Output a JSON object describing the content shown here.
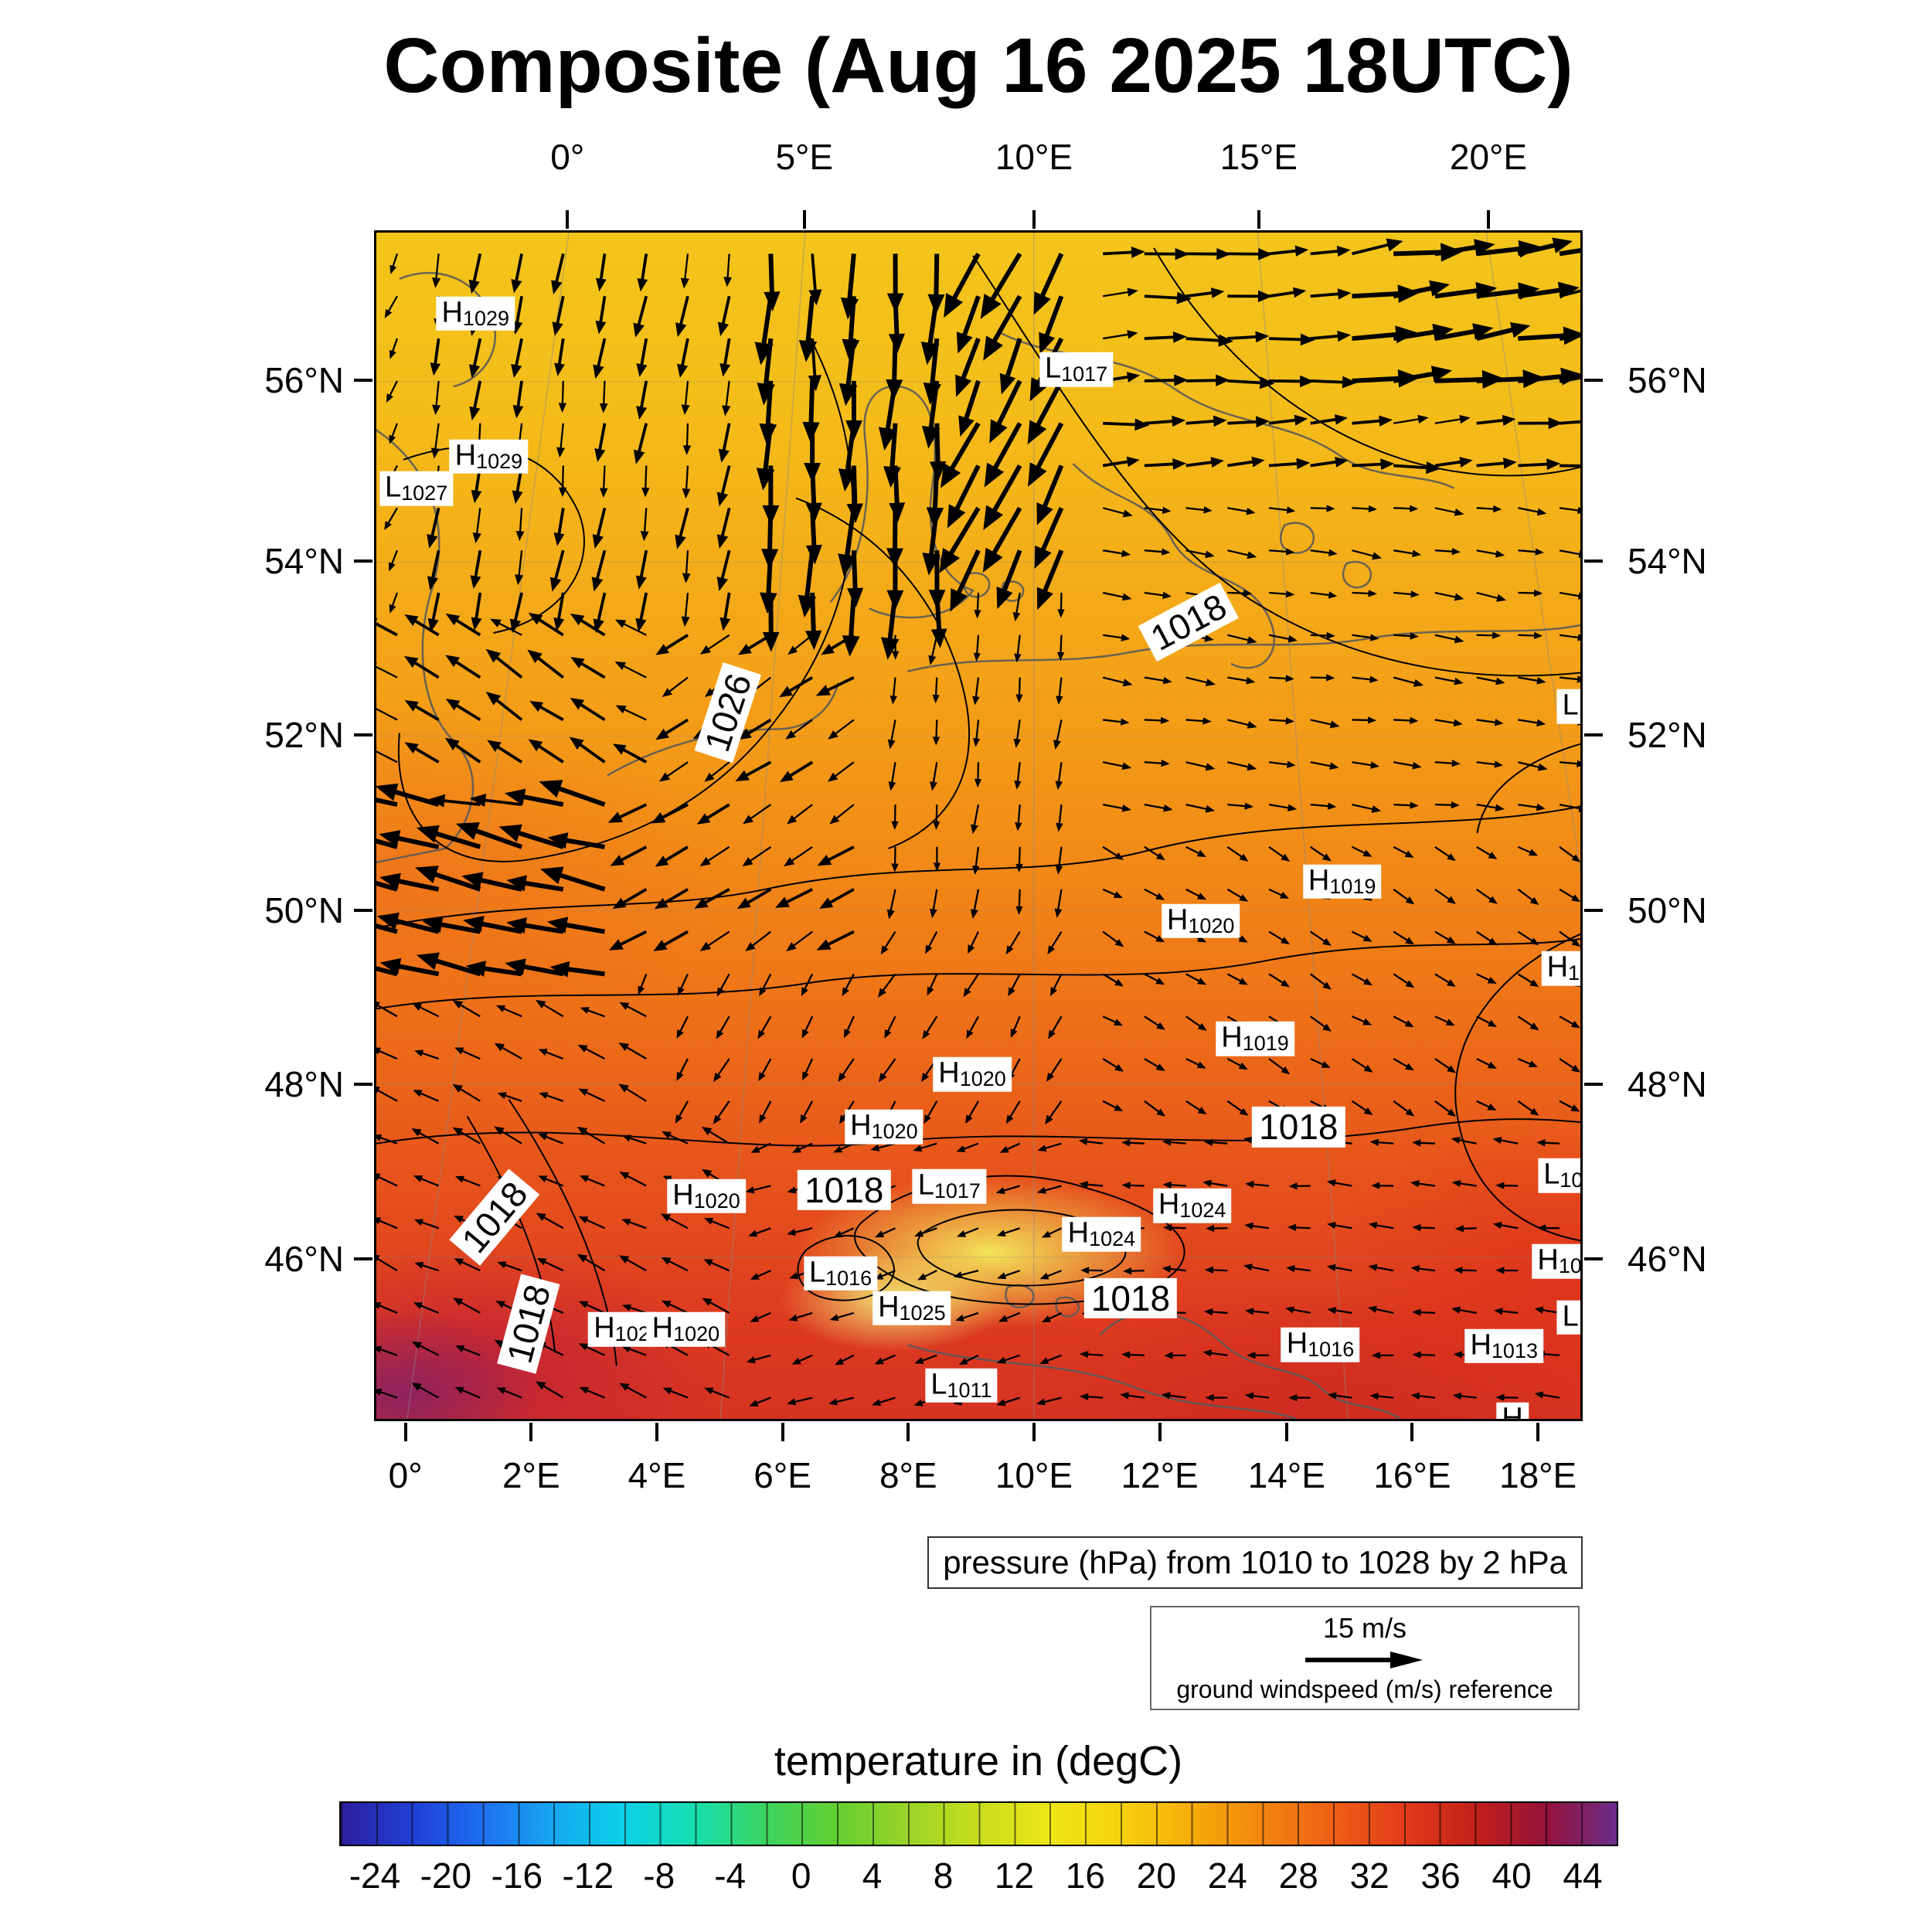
{
  "title": "Composite (Aug 16 2025 18UTC)",
  "pressure_caption": "pressure (hPa) from 1010 to 1028 by 2 hPa",
  "wind_legend": {
    "speed_label": "15 m/s",
    "caption": "ground windspeed (m/s) reference"
  },
  "colorbar": {
    "title": "temperature in (degC)",
    "vmin": -26,
    "vmax": 46,
    "ticks": [
      -24,
      -20,
      -16,
      -12,
      -8,
      -4,
      0,
      4,
      8,
      12,
      16,
      20,
      24,
      28,
      32,
      36,
      40,
      44
    ],
    "stops": [
      {
        "v": -26,
        "c": "#2d1e9e"
      },
      {
        "v": -22,
        "c": "#1f3fd4"
      },
      {
        "v": -18,
        "c": "#1e6ff0"
      },
      {
        "v": -14,
        "c": "#17a8f0"
      },
      {
        "v": -10,
        "c": "#0cd0e8"
      },
      {
        "v": -6,
        "c": "#17dfae"
      },
      {
        "v": -2,
        "c": "#3cd45e"
      },
      {
        "v": 2,
        "c": "#63cf30"
      },
      {
        "v": 6,
        "c": "#9ad428"
      },
      {
        "v": 10,
        "c": "#c8df1e"
      },
      {
        "v": 14,
        "c": "#eee616"
      },
      {
        "v": 18,
        "c": "#f6d20c"
      },
      {
        "v": 22,
        "c": "#f6ac0a"
      },
      {
        "v": 26,
        "c": "#f3860f"
      },
      {
        "v": 30,
        "c": "#ee5f14"
      },
      {
        "v": 34,
        "c": "#e23b1a"
      },
      {
        "v": 38,
        "c": "#c22018"
      },
      {
        "v": 42,
        "c": "#95123a"
      },
      {
        "v": 46,
        "c": "#6c2d8c"
      }
    ]
  },
  "axes": {
    "top": [
      {
        "label": "0°",
        "f": 0.16
      },
      {
        "label": "5°E",
        "f": 0.356
      },
      {
        "label": "10°E",
        "f": 0.546
      },
      {
        "label": "15°E",
        "f": 0.732
      },
      {
        "label": "20°E",
        "f": 0.922
      }
    ],
    "bottom": [
      {
        "label": "0°",
        "f": 0.026
      },
      {
        "label": "2°E",
        "f": 0.13
      },
      {
        "label": "4°E",
        "f": 0.234
      },
      {
        "label": "6°E",
        "f": 0.338
      },
      {
        "label": "8°E",
        "f": 0.442
      },
      {
        "label": "10°E",
        "f": 0.546
      },
      {
        "label": "12°E",
        "f": 0.65
      },
      {
        "label": "14°E",
        "f": 0.755
      },
      {
        "label": "16°E",
        "f": 0.859
      },
      {
        "label": "18°E",
        "f": 0.963
      }
    ],
    "left": [
      {
        "label": "56°N",
        "f": 0.126
      },
      {
        "label": "54°N",
        "f": 0.278
      },
      {
        "label": "52°N",
        "f": 0.424
      },
      {
        "label": "50°N",
        "f": 0.571
      },
      {
        "label": "48°N",
        "f": 0.717
      },
      {
        "label": "46°N",
        "f": 0.864
      }
    ],
    "right": [
      {
        "label": "56°N",
        "f": 0.126
      },
      {
        "label": "54°N",
        "f": 0.278
      },
      {
        "label": "52°N",
        "f": 0.424
      },
      {
        "label": "50°N",
        "f": 0.571
      },
      {
        "label": "48°N",
        "f": 0.717
      },
      {
        "label": "46°N",
        "f": 0.864
      }
    ]
  },
  "pressure_labels": [
    {
      "t": "H",
      "sub": "1029",
      "fx": 0.082,
      "fy": 0.068
    },
    {
      "t": "H",
      "sub": "1029",
      "fx": 0.093,
      "fy": 0.188
    },
    {
      "t": "L",
      "sub": "1027",
      "fx": 0.033,
      "fy": 0.215
    },
    {
      "t": "L",
      "sub": "1017",
      "fx": 0.579,
      "fy": 0.115
    },
    {
      "t": "1026",
      "fx": 0.291,
      "fy": 0.403,
      "rot": -72,
      "big": true
    },
    {
      "t": "1018",
      "fx": 0.672,
      "fy": 0.327,
      "rot": -28,
      "big": true
    },
    {
      "t": "L",
      "sub": "",
      "fx": 0.988,
      "fy": 0.398
    },
    {
      "t": "H",
      "sub": "1019",
      "fx": 0.799,
      "fy": 0.545
    },
    {
      "t": "H",
      "sub": "1020",
      "fx": 0.682,
      "fy": 0.578
    },
    {
      "t": "H",
      "sub": "1",
      "fx": 0.982,
      "fy": 0.618
    },
    {
      "t": "H",
      "sub": "1019",
      "fx": 0.727,
      "fy": 0.677
    },
    {
      "t": "H",
      "sub": "1020",
      "fx": 0.493,
      "fy": 0.707
    },
    {
      "t": "H",
      "sub": "1020",
      "fx": 0.42,
      "fy": 0.751
    },
    {
      "t": "1018",
      "fx": 0.763,
      "fy": 0.751,
      "big": true
    },
    {
      "t": "L",
      "sub": "10",
      "fx": 0.982,
      "fy": 0.792
    },
    {
      "t": "1018",
      "fx": 0.387,
      "fy": 0.804,
      "big": true
    },
    {
      "t": "L",
      "sub": "1017",
      "fx": 0.474,
      "fy": 0.801
    },
    {
      "t": "H",
      "sub": "1020",
      "fx": 0.273,
      "fy": 0.809
    },
    {
      "t": "H",
      "sub": "1024",
      "fx": 0.675,
      "fy": 0.817
    },
    {
      "t": "1018",
      "fx": 0.098,
      "fy": 0.827,
      "rot": -50,
      "big": true
    },
    {
      "t": "H",
      "sub": "1024",
      "fx": 0.6,
      "fy": 0.841
    },
    {
      "t": "H",
      "sub": "10",
      "fx": 0.979,
      "fy": 0.864
    },
    {
      "t": "L",
      "sub": "1016",
      "fx": 0.384,
      "fy": 0.874
    },
    {
      "t": "1018",
      "fx": 0.624,
      "fy": 0.895,
      "big": true
    },
    {
      "t": "H",
      "sub": "1025",
      "fx": 0.443,
      "fy": 0.903
    },
    {
      "t": "L",
      "sub": "",
      "fx": 0.988,
      "fy": 0.911
    },
    {
      "t": "1018",
      "fx": 0.126,
      "fy": 0.916,
      "rot": -75,
      "big": true
    },
    {
      "t": "H",
      "sub": "102",
      "fx": 0.203,
      "fy": 0.921
    },
    {
      "t": "H",
      "sub": "1020",
      "fx": 0.256,
      "fy": 0.921
    },
    {
      "t": "H",
      "sub": "1016",
      "fx": 0.781,
      "fy": 0.934
    },
    {
      "t": "H",
      "sub": "1013",
      "fx": 0.933,
      "fy": 0.935
    },
    {
      "t": "L",
      "sub": "1011",
      "fx": 0.484,
      "fy": 0.968
    },
    {
      "t": "H",
      "sub": "",
      "fx": 0.94,
      "fy": 0.997
    }
  ],
  "wind_field": {
    "regions": [
      {
        "x": [
          0.3,
          0.47
        ],
        "y": [
          0.0,
          0.32
        ],
        "angle": 92,
        "len": 1.9
      },
      {
        "x": [
          0.47,
          0.6
        ],
        "y": [
          0.0,
          0.28
        ],
        "angle": 115,
        "len": 2.1
      },
      {
        "x": [
          0.05,
          0.3
        ],
        "y": [
          0.0,
          0.33
        ],
        "angle": 98,
        "len": 1.15
      },
      {
        "x": [
          0.8,
          1.01
        ],
        "y": [
          0.0,
          0.13
        ],
        "angle": -8,
        "len": 1.9
      },
      {
        "x": [
          0.6,
          1.01
        ],
        "y": [
          0.0,
          0.22
        ],
        "angle": -3,
        "len": 1.3
      },
      {
        "x": [
          0.6,
          1.01
        ],
        "y": [
          0.22,
          0.5
        ],
        "angle": 8,
        "len": 0.85
      },
      {
        "x": [
          0.0,
          0.2
        ],
        "y": [
          0.47,
          0.64
        ],
        "angle": 193,
        "len": 1.9
      },
      {
        "x": [
          0.0,
          0.25
        ],
        "y": [
          0.33,
          0.47
        ],
        "angle": 212,
        "len": 1.25
      },
      {
        "x": [
          0.2,
          0.42
        ],
        "y": [
          0.3,
          0.6
        ],
        "angle": 148,
        "len": 1.15
      },
      {
        "x": [
          0.42,
          0.6
        ],
        "y": [
          0.26,
          0.58
        ],
        "angle": 96,
        "len": 0.85
      },
      {
        "x": [
          0.25,
          0.6
        ],
        "y": [
          0.58,
          0.76
        ],
        "angle": 120,
        "len": 0.8
      },
      {
        "x": [
          0.0,
          0.3
        ],
        "y": [
          0.64,
          1.01
        ],
        "angle": 205,
        "len": 0.9
      },
      {
        "x": [
          0.6,
          1.01
        ],
        "y": [
          0.5,
          0.74
        ],
        "angle": 30,
        "len": 0.7
      },
      {
        "x": [
          0.6,
          1.01
        ],
        "y": [
          0.74,
          1.01
        ],
        "angle": 185,
        "len": 0.7
      },
      {
        "x": [
          0.3,
          0.6
        ],
        "y": [
          0.76,
          1.01
        ],
        "angle": 160,
        "len": 0.7
      }
    ],
    "default": {
      "angle": 115,
      "len": 0.7
    }
  },
  "chart_data": {
    "type": "heatmap",
    "title": "Composite (Aug 16 2025 18UTC)",
    "extent": {
      "lon_ticks_top": [
        "0°",
        "5°E",
        "10°E",
        "15°E",
        "20°E"
      ],
      "lon_ticks_bottom": [
        "0°",
        "2°E",
        "4°E",
        "6°E",
        "8°E",
        "10°E",
        "12°E",
        "14°E",
        "16°E",
        "18°E"
      ],
      "lat_ticks": [
        "56°N",
        "54°N",
        "52°N",
        "50°N",
        "48°N",
        "46°N"
      ]
    },
    "layers": [
      {
        "name": "temperature",
        "type": "filled_field",
        "units": "degC",
        "colorbar_label": "temperature in (degC)",
        "colorbar_ticks": [
          -24,
          -20,
          -16,
          -12,
          -8,
          -4,
          0,
          4,
          8,
          12,
          16,
          20,
          24,
          28,
          32,
          36,
          40,
          44
        ],
        "range_shown": [
          -26,
          46
        ]
      },
      {
        "name": "pressure",
        "type": "contour",
        "units": "hPa",
        "levels_from": 1010,
        "levels_to": 1028,
        "levels_by": 2,
        "labeled_contours": [
          1018,
          1026
        ]
      },
      {
        "name": "ground_wind",
        "type": "vector",
        "units": "m/s",
        "reference_speed": 15
      }
    ],
    "pressure_centers": [
      {
        "type": "H",
        "value": 1029
      },
      {
        "type": "H",
        "value": 1029
      },
      {
        "type": "L",
        "value": 1027
      },
      {
        "type": "L",
        "value": 1017
      },
      {
        "type": "H",
        "value": 1019
      },
      {
        "type": "H",
        "value": 1020
      },
      {
        "type": "H",
        "value": 1019
      },
      {
        "type": "H",
        "value": 1020
      },
      {
        "type": "H",
        "value": 1020
      },
      {
        "type": "L",
        "value": 1017
      },
      {
        "type": "H",
        "value": 1024
      },
      {
        "type": "H",
        "value": 1024
      },
      {
        "type": "L",
        "value": 1016
      },
      {
        "type": "H",
        "value": 1020
      },
      {
        "type": "H",
        "value": 1020
      },
      {
        "type": "H",
        "value": 1025
      },
      {
        "type": "H",
        "value": 1016
      },
      {
        "type": "H",
        "value": 1013
      },
      {
        "type": "L",
        "value": 1011
      }
    ]
  }
}
